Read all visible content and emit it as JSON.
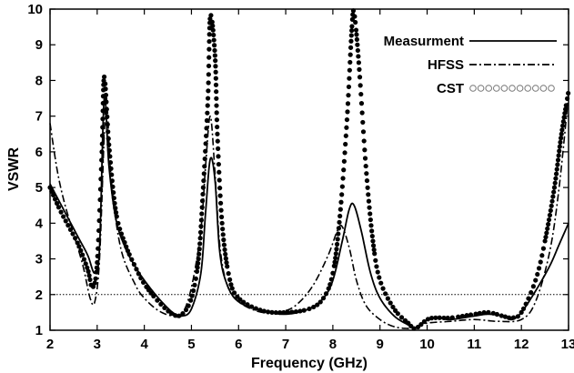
{
  "chart_data": {
    "type": "line",
    "title": "",
    "xlabel": "Frequency (GHz)",
    "ylabel": "VSWR",
    "xlim": [
      2,
      13
    ],
    "ylim": [
      1,
      10
    ],
    "xticks": [
      "2",
      "3",
      "4",
      "5",
      "6",
      "7",
      "8",
      "9",
      "10",
      "11",
      "12",
      "13"
    ],
    "yticks": [
      "1",
      "2",
      "3",
      "4",
      "5",
      "6",
      "7",
      "8",
      "9",
      "10"
    ],
    "grid": false,
    "legend_position": "top-right",
    "reference_line": {
      "y": 2,
      "style": "dotted"
    },
    "series": [
      {
        "name": "Measurment",
        "style": "solid",
        "color": "#000000",
        "points": [
          [
            2,
            5.1
          ],
          [
            2.2,
            4.6
          ],
          [
            2.4,
            4.1
          ],
          [
            2.6,
            3.6
          ],
          [
            2.8,
            3.1
          ],
          [
            2.95,
            2.6
          ],
          [
            3.05,
            3.3
          ],
          [
            3.15,
            7.5
          ],
          [
            3.25,
            5.6
          ],
          [
            3.4,
            4.1
          ],
          [
            3.6,
            3.3
          ],
          [
            3.8,
            2.8
          ],
          [
            4.0,
            2.4
          ],
          [
            4.3,
            1.9
          ],
          [
            4.6,
            1.5
          ],
          [
            4.8,
            1.4
          ],
          [
            5.0,
            1.6
          ],
          [
            5.2,
            2.6
          ],
          [
            5.3,
            4.3
          ],
          [
            5.4,
            5.8
          ],
          [
            5.5,
            5.2
          ],
          [
            5.6,
            3.2
          ],
          [
            5.75,
            2.3
          ],
          [
            6.0,
            1.8
          ],
          [
            6.5,
            1.55
          ],
          [
            7.0,
            1.45
          ],
          [
            7.5,
            1.6
          ],
          [
            7.8,
            1.9
          ],
          [
            8.0,
            2.4
          ],
          [
            8.2,
            3.5
          ],
          [
            8.35,
            4.4
          ],
          [
            8.45,
            4.5
          ],
          [
            8.6,
            3.8
          ],
          [
            8.8,
            2.6
          ],
          [
            9.0,
            1.9
          ],
          [
            9.3,
            1.4
          ],
          [
            9.6,
            1.15
          ],
          [
            9.75,
            1.05
          ],
          [
            10.0,
            1.3
          ],
          [
            10.2,
            1.35
          ],
          [
            10.5,
            1.3
          ],
          [
            11.0,
            1.4
          ],
          [
            11.3,
            1.45
          ],
          [
            11.6,
            1.4
          ],
          [
            11.8,
            1.3
          ],
          [
            12.0,
            1.5
          ],
          [
            12.3,
            2.1
          ],
          [
            12.6,
            2.8
          ],
          [
            12.8,
            3.4
          ],
          [
            13.0,
            4.0
          ]
        ]
      },
      {
        "name": "HFSS",
        "style": "dash-dot",
        "color": "#000000",
        "points": [
          [
            2,
            6.8
          ],
          [
            2.15,
            5.5
          ],
          [
            2.3,
            4.6
          ],
          [
            2.5,
            3.7
          ],
          [
            2.7,
            2.8
          ],
          [
            2.85,
            1.9
          ],
          [
            2.95,
            1.8
          ],
          [
            3.05,
            3.0
          ],
          [
            3.15,
            6.5
          ],
          [
            3.2,
            7.5
          ],
          [
            3.3,
            5.2
          ],
          [
            3.5,
            3.3
          ],
          [
            3.8,
            2.3
          ],
          [
            4.0,
            1.9
          ],
          [
            4.3,
            1.55
          ],
          [
            4.6,
            1.4
          ],
          [
            4.8,
            1.45
          ],
          [
            5.0,
            2.2
          ],
          [
            5.2,
            3.8
          ],
          [
            5.3,
            5.6
          ],
          [
            5.4,
            7.0
          ],
          [
            5.5,
            5.4
          ],
          [
            5.6,
            3.4
          ],
          [
            5.75,
            2.3
          ],
          [
            6.0,
            1.8
          ],
          [
            6.5,
            1.5
          ],
          [
            7.0,
            1.55
          ],
          [
            7.3,
            1.8
          ],
          [
            7.6,
            2.3
          ],
          [
            7.9,
            3.1
          ],
          [
            8.1,
            3.8
          ],
          [
            8.2,
            3.9
          ],
          [
            8.35,
            3.3
          ],
          [
            8.5,
            2.4
          ],
          [
            8.7,
            1.7
          ],
          [
            9.0,
            1.3
          ],
          [
            9.3,
            1.1
          ],
          [
            9.6,
            1.05
          ],
          [
            9.8,
            1.1
          ],
          [
            10.0,
            1.2
          ],
          [
            10.5,
            1.25
          ],
          [
            11.0,
            1.3
          ],
          [
            11.5,
            1.25
          ],
          [
            12.0,
            1.3
          ],
          [
            12.3,
            1.8
          ],
          [
            12.6,
            3.2
          ],
          [
            12.8,
            5.0
          ],
          [
            13.0,
            7.6
          ]
        ]
      },
      {
        "name": "CST",
        "style": "dots",
        "color": "#000000",
        "points": [
          [
            2,
            5.0
          ],
          [
            2.2,
            4.4
          ],
          [
            2.4,
            3.9
          ],
          [
            2.6,
            3.4
          ],
          [
            2.8,
            2.7
          ],
          [
            2.9,
            2.2
          ],
          [
            3.0,
            2.9
          ],
          [
            3.1,
            6.0
          ],
          [
            3.15,
            8.1
          ],
          [
            3.25,
            6.2
          ],
          [
            3.4,
            4.3
          ],
          [
            3.6,
            3.4
          ],
          [
            3.8,
            2.8
          ],
          [
            4.0,
            2.3
          ],
          [
            4.3,
            1.8
          ],
          [
            4.6,
            1.45
          ],
          [
            4.8,
            1.45
          ],
          [
            5.0,
            1.9
          ],
          [
            5.15,
            3.0
          ],
          [
            5.25,
            5.0
          ],
          [
            5.35,
            7.5
          ],
          [
            5.4,
            9.8
          ],
          [
            5.5,
            8.7
          ],
          [
            5.55,
            6.5
          ],
          [
            5.65,
            4.0
          ],
          [
            5.8,
            2.5
          ],
          [
            6.0,
            1.9
          ],
          [
            6.5,
            1.55
          ],
          [
            7.0,
            1.5
          ],
          [
            7.5,
            1.6
          ],
          [
            7.8,
            1.9
          ],
          [
            8.0,
            2.6
          ],
          [
            8.15,
            4.2
          ],
          [
            8.3,
            6.9
          ],
          [
            8.4,
            9.4
          ],
          [
            8.45,
            9.9
          ],
          [
            8.55,
            8.5
          ],
          [
            8.7,
            5.6
          ],
          [
            8.85,
            3.5
          ],
          [
            9.0,
            2.4
          ],
          [
            9.3,
            1.6
          ],
          [
            9.6,
            1.2
          ],
          [
            9.75,
            1.05
          ],
          [
            10.0,
            1.3
          ],
          [
            10.2,
            1.35
          ],
          [
            10.5,
            1.35
          ],
          [
            11.0,
            1.45
          ],
          [
            11.3,
            1.5
          ],
          [
            11.6,
            1.4
          ],
          [
            11.8,
            1.35
          ],
          [
            12.0,
            1.5
          ],
          [
            12.3,
            2.4
          ],
          [
            12.5,
            3.5
          ],
          [
            12.7,
            5.0
          ],
          [
            12.85,
            6.5
          ],
          [
            13.0,
            7.7
          ]
        ]
      }
    ]
  }
}
